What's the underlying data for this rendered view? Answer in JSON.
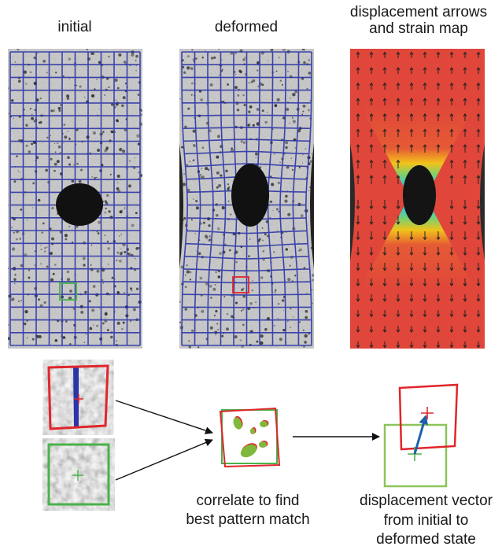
{
  "panels": {
    "initial_title": "initial",
    "deformed_title": "deformed",
    "strain_title_line1": "displacement arrows",
    "strain_title_line2": "and strain map"
  },
  "captions": {
    "correlate_line1": "correlate to find",
    "correlate_line2": "best pattern match",
    "vector_line1": "displacement vector",
    "vector_line2": "from initial to",
    "vector_line3": "deformed state"
  },
  "colors": {
    "grid": "#2b35a8",
    "initial_box": "#49b24a",
    "deformed_box": "#e0262b",
    "vector": "#1e5fa8",
    "strain_high": "#e0463a",
    "strain_low": "#2f6fe0"
  }
}
